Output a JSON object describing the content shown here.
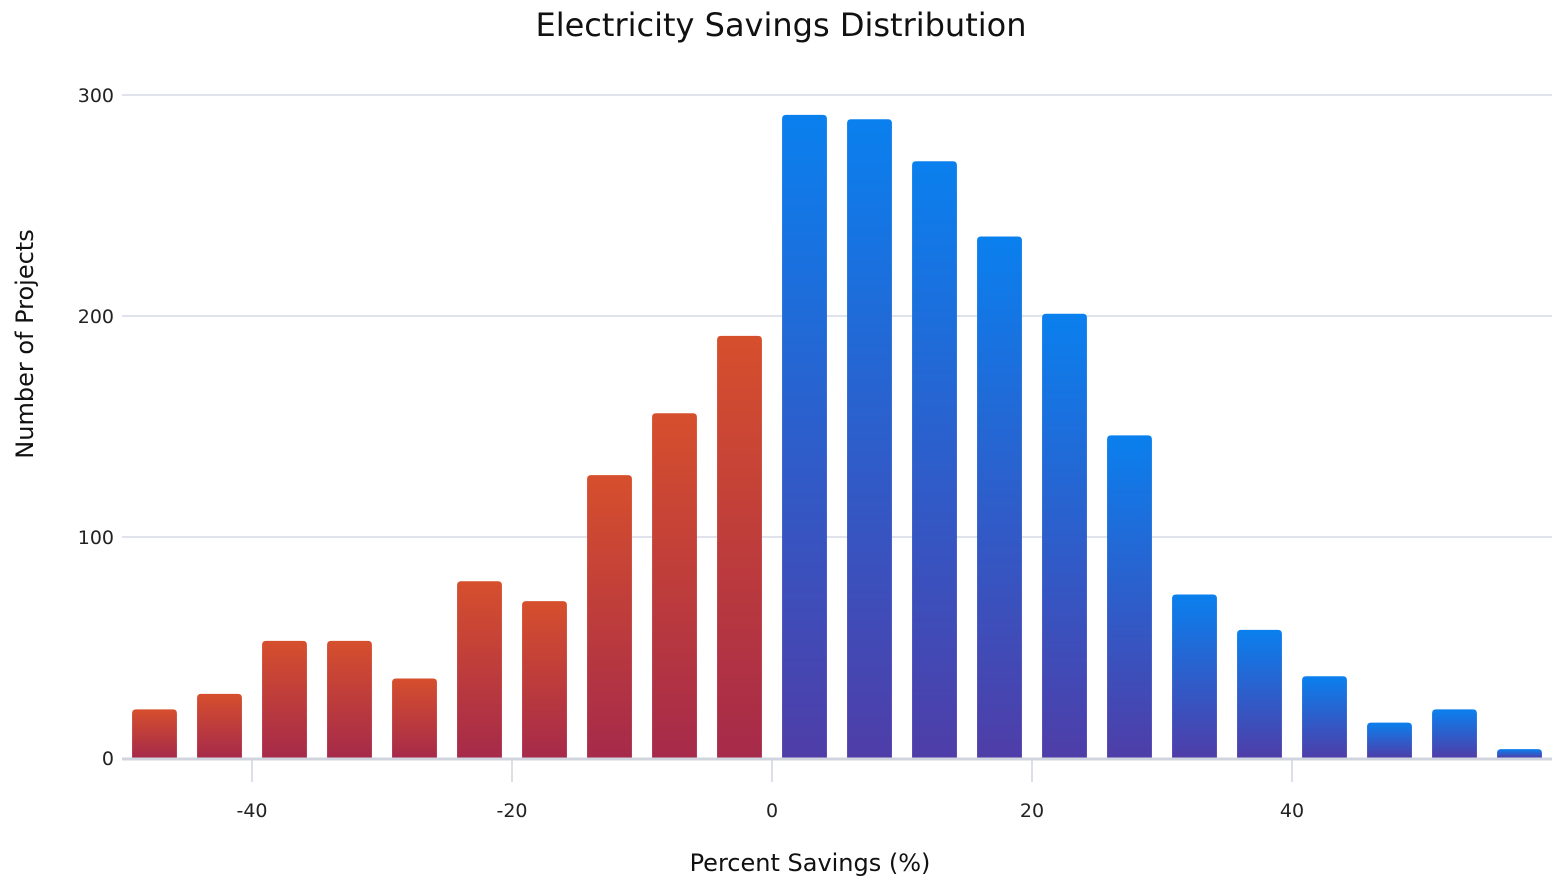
{
  "chart_data": {
    "type": "bar",
    "title": "Electricity Savings Distribution",
    "xlabel": "Percent Savings (%)",
    "ylabel": "Number of Projects",
    "xlim": [
      -50,
      60
    ],
    "ylim": [
      0,
      300
    ],
    "bin_width": 5,
    "x_ticks": [
      -40,
      -20,
      0,
      20,
      40
    ],
    "y_ticks": [
      0,
      100,
      200,
      300
    ],
    "grid": "horizontal",
    "series": [
      {
        "bins": [
          {
            "x": -47.5,
            "value": 22
          },
          {
            "x": -42.5,
            "value": 29
          },
          {
            "x": -37.5,
            "value": 53
          },
          {
            "x": -32.5,
            "value": 53
          },
          {
            "x": -27.5,
            "value": 36
          },
          {
            "x": -22.5,
            "value": 80
          },
          {
            "x": -17.5,
            "value": 71
          },
          {
            "x": -12.5,
            "value": 128
          },
          {
            "x": -7.5,
            "value": 156
          },
          {
            "x": -2.5,
            "value": 191
          },
          {
            "x": 2.5,
            "value": 291
          },
          {
            "x": 7.5,
            "value": 289
          },
          {
            "x": 12.5,
            "value": 270
          },
          {
            "x": 17.5,
            "value": 236
          },
          {
            "x": 22.5,
            "value": 201
          },
          {
            "x": 27.5,
            "value": 146
          },
          {
            "x": 32.5,
            "value": 74
          },
          {
            "x": 37.5,
            "value": 58
          },
          {
            "x": 42.5,
            "value": 37
          },
          {
            "x": 47.5,
            "value": 16
          },
          {
            "x": 52.5,
            "value": 22
          },
          {
            "x": 57.5,
            "value": 4
          }
        ]
      }
    ],
    "colors": {
      "negative_top": "#d64f2d",
      "negative_bottom": "#a62a4a",
      "positive_top": "#0a80ee",
      "positive_bottom": "#4f3da8",
      "grid": "#d6d9e6",
      "axis": "#d0d4de"
    }
  }
}
